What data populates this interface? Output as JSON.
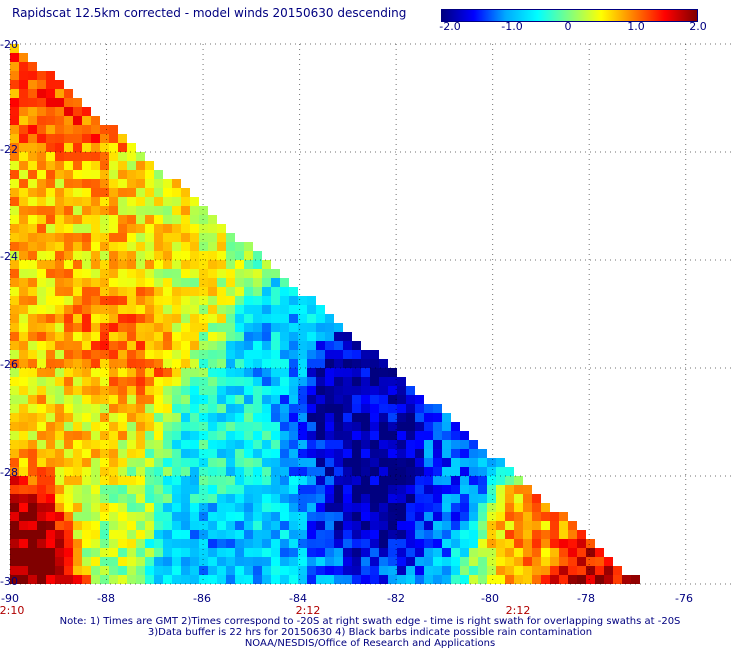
{
  "title": "Rapidscat 12.5km corrected - model winds 20150630 descending",
  "colorbar": {
    "labels": [
      "-2.0",
      "-1.0",
      "0",
      "1.0",
      "2.0"
    ],
    "min": -2.0,
    "max": 2.0,
    "colors": [
      "#000080",
      "#0000ff",
      "#00aaff",
      "#00ffff",
      "#80ff80",
      "#ffff00",
      "#ff8000",
      "#ff0000",
      "#800000"
    ]
  },
  "axes": {
    "x_ticks": [
      "-90",
      "-88",
      "-86",
      "-84",
      "-82",
      "-80",
      "-78",
      "-76"
    ],
    "y_ticks": [
      "-20",
      "-22",
      "-24",
      "-26",
      "-28",
      "-30"
    ],
    "xlim": [
      -90,
      -75
    ],
    "ylim": [
      -30,
      -20
    ],
    "grid": true
  },
  "time_labels": [
    {
      "text": "2:10",
      "lon": -90
    },
    {
      "text": "2:12",
      "lon": -84
    },
    {
      "text": "2:12",
      "lon": -80
    }
  ],
  "notes": [
    "Note: 1) Times are GMT 2)Times correspond to -20S at right swath edge - time is right swath for overlapping swaths at -20S",
    "3)Data buffer is 22 hrs for 20150630 4) Black barbs indicate possible rain contamination",
    "NOAA/NESDIS/Office of Research and Applications"
  ],
  "chart_data": {
    "type": "heatmap",
    "title": "Rapidscat 12.5km corrected - model winds 20150630 descending",
    "xlabel": "",
    "ylabel": "",
    "xlim": [
      -90,
      -75
    ],
    "ylim": [
      -30,
      -20
    ],
    "value_range": [
      -2.0,
      2.0
    ],
    "swath_edge": [
      [
        -90,
        -20
      ],
      [
        -77,
        -30
      ]
    ],
    "regions": [
      {
        "lon": -88.5,
        "lat": -21.0,
        "value": 1.2
      },
      {
        "lon": -88.5,
        "lat": -23.0,
        "value": 0.7
      },
      {
        "lon": -86.5,
        "lat": -22.5,
        "value": 0.5
      },
      {
        "lon": -87.5,
        "lat": -25.5,
        "value": 1.0
      },
      {
        "lon": -86.0,
        "lat": -24.5,
        "value": 0.4
      },
      {
        "lon": -84.5,
        "lat": -25.5,
        "value": -0.8
      },
      {
        "lon": -83.0,
        "lat": -26.5,
        "value": -1.8
      },
      {
        "lon": -82.0,
        "lat": -28.0,
        "value": -1.9
      },
      {
        "lon": -81.0,
        "lat": -28.0,
        "value": -1.2
      },
      {
        "lon": -85.5,
        "lat": -27.5,
        "value": -0.5
      },
      {
        "lon": -88.5,
        "lat": -27.0,
        "value": 0.6
      },
      {
        "lon": -89.5,
        "lat": -29.5,
        "value": 2.0
      },
      {
        "lon": -88.0,
        "lat": -29.0,
        "value": 0.2
      },
      {
        "lon": -86.0,
        "lat": -29.5,
        "value": -0.9
      },
      {
        "lon": -79.0,
        "lat": -29.0,
        "value": 0.9
      },
      {
        "lon": -78.0,
        "lat": -29.5,
        "value": 1.6
      }
    ]
  }
}
